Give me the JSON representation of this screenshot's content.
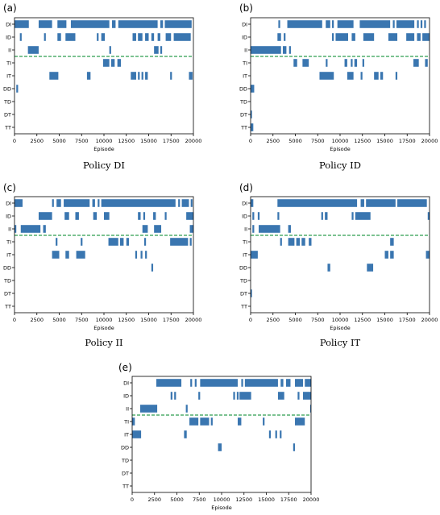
{
  "chart_data": [
    {
      "type": "timeline",
      "panel_label": "(a)",
      "caption": "Policy DI",
      "xlabel": "Episode",
      "xlim": [
        0,
        20000
      ],
      "xticks": [
        0,
        2500,
        5000,
        7500,
        10000,
        12500,
        15000,
        17500,
        20000
      ],
      "rows": [
        "DI",
        "ID",
        "II",
        "TI",
        "IT",
        "DD",
        "TD",
        "DT",
        "TT"
      ],
      "divider_after": "II",
      "segments": {
        "DI": [
          [
            0,
            1600
          ],
          [
            2700,
            4200
          ],
          [
            4800,
            5800
          ],
          [
            6300,
            10600
          ],
          [
            10900,
            11300
          ],
          [
            11600,
            16000
          ],
          [
            16300,
            16600
          ],
          [
            16800,
            19800
          ]
        ],
        "ID": [
          [
            600,
            800
          ],
          [
            3300,
            3500
          ],
          [
            4800,
            5200
          ],
          [
            5700,
            6800
          ],
          [
            9200,
            9400
          ],
          [
            9700,
            10100
          ],
          [
            13200,
            13600
          ],
          [
            13800,
            14300
          ],
          [
            14600,
            15000
          ],
          [
            15300,
            15600
          ],
          [
            16000,
            16300
          ],
          [
            16900,
            17500
          ],
          [
            17800,
            19700
          ]
        ],
        "II": [
          [
            1500,
            2700
          ],
          [
            10600,
            10800
          ],
          [
            15600,
            16100
          ],
          [
            16300,
            16500
          ]
        ],
        "TI": [
          [
            9900,
            10600
          ],
          [
            10800,
            11200
          ],
          [
            11500,
            11900
          ]
        ],
        "IT": [
          [
            3900,
            4900
          ],
          [
            8100,
            8500
          ],
          [
            13000,
            13600
          ],
          [
            13800,
            14000
          ],
          [
            14200,
            14400
          ],
          [
            14600,
            14900
          ],
          [
            17400,
            17600
          ],
          [
            19500,
            19900
          ]
        ],
        "DD": [
          [
            200,
            400
          ]
        ],
        "TD": [],
        "DT": [],
        "TT": []
      }
    },
    {
      "type": "timeline",
      "panel_label": "(b)",
      "caption": "Policy ID",
      "xlabel": "Episode",
      "xlim": [
        0,
        20000
      ],
      "xticks": [
        0,
        2500,
        5000,
        7500,
        10000,
        12500,
        15000,
        17500,
        20000
      ],
      "rows": [
        "DI",
        "ID",
        "II",
        "TI",
        "IT",
        "DD",
        "TD",
        "DT",
        "TT"
      ],
      "divider_after": "II",
      "segments": {
        "DI": [
          [
            3100,
            3300
          ],
          [
            4100,
            8000
          ],
          [
            8400,
            8900
          ],
          [
            9100,
            9300
          ],
          [
            9700,
            11500
          ],
          [
            12200,
            15600
          ],
          [
            15900,
            16100
          ],
          [
            16300,
            18300
          ],
          [
            18600,
            18800
          ],
          [
            19000,
            19200
          ],
          [
            19400,
            19600
          ]
        ],
        "ID": [
          [
            3000,
            3400
          ],
          [
            3700,
            3900
          ],
          [
            9100,
            9300
          ],
          [
            9500,
            10900
          ],
          [
            11300,
            11700
          ],
          [
            12600,
            13800
          ],
          [
            15400,
            16400
          ],
          [
            17400,
            18300
          ],
          [
            18600,
            19000
          ],
          [
            19200,
            20000
          ]
        ],
        "II": [
          [
            0,
            3400
          ],
          [
            3600,
            4000
          ],
          [
            4300,
            4500
          ]
        ],
        "TI": [
          [
            4800,
            5200
          ],
          [
            5800,
            6500
          ],
          [
            8400,
            8600
          ],
          [
            10500,
            10800
          ],
          [
            11200,
            11400
          ],
          [
            11600,
            11900
          ],
          [
            12500,
            12700
          ],
          [
            18200,
            18800
          ],
          [
            19500,
            19800
          ]
        ],
        "IT": [
          [
            7700,
            9300
          ],
          [
            10800,
            11500
          ],
          [
            12300,
            12500
          ],
          [
            13800,
            14300
          ],
          [
            14500,
            14800
          ],
          [
            16200,
            16400
          ]
        ],
        "DD": [
          [
            0,
            400
          ]
        ],
        "TD": [],
        "DT": [
          [
            0,
            150
          ]
        ],
        "TT": [
          [
            0,
            300
          ]
        ]
      }
    },
    {
      "type": "timeline",
      "panel_label": "(c)",
      "caption": "Policy II",
      "xlabel": "Episode",
      "xlim": [
        0,
        20000
      ],
      "xticks": [
        0,
        2500,
        5000,
        7500,
        10000,
        12500,
        15000,
        17500,
        20000
      ],
      "rows": [
        "DI",
        "ID",
        "II",
        "TI",
        "IT",
        "DD",
        "TD",
        "DT",
        "TT"
      ],
      "divider_after": "II",
      "segments": {
        "DI": [
          [
            0,
            900
          ],
          [
            4200,
            4400
          ],
          [
            4700,
            5200
          ],
          [
            5500,
            8400
          ],
          [
            8700,
            9000
          ],
          [
            9300,
            9500
          ],
          [
            9700,
            18000
          ],
          [
            18300,
            18500
          ],
          [
            18700,
            19500
          ],
          [
            19700,
            19900
          ]
        ],
        "ID": [
          [
            2700,
            4200
          ],
          [
            5600,
            6100
          ],
          [
            6800,
            7200
          ],
          [
            8800,
            9200
          ],
          [
            10000,
            10600
          ],
          [
            13800,
            14100
          ],
          [
            14400,
            14600
          ],
          [
            15500,
            15800
          ],
          [
            16800,
            17000
          ],
          [
            19200,
            20000
          ]
        ],
        "II": [
          [
            0,
            200
          ],
          [
            700,
            2900
          ],
          [
            3200,
            3500
          ],
          [
            14300,
            14900
          ],
          [
            15600,
            16400
          ],
          [
            19600,
            20000
          ]
        ],
        "TI": [
          [
            4600,
            4800
          ],
          [
            7400,
            7600
          ],
          [
            10500,
            11600
          ],
          [
            11800,
            12200
          ],
          [
            12500,
            12800
          ],
          [
            14500,
            14700
          ],
          [
            17400,
            19400
          ],
          [
            19600,
            19800
          ]
        ],
        "IT": [
          [
            4200,
            5000
          ],
          [
            5700,
            6100
          ],
          [
            6900,
            7900
          ],
          [
            13500,
            13700
          ],
          [
            14100,
            14300
          ],
          [
            14600,
            14800
          ]
        ],
        "DD": [
          [
            15300,
            15500
          ]
        ],
        "TD": [],
        "DT": [],
        "TT": []
      }
    },
    {
      "type": "timeline",
      "panel_label": "(d)",
      "caption": "Policy IT",
      "xlabel": "Episode",
      "xlim": [
        0,
        20000
      ],
      "xticks": [
        0,
        2500,
        5000,
        7500,
        10000,
        12500,
        15000,
        17500,
        20000
      ],
      "rows": [
        "DI",
        "ID",
        "II",
        "TI",
        "IT",
        "DD",
        "TD",
        "DT",
        "TT"
      ],
      "divider_after": "II",
      "segments": {
        "DI": [
          [
            0,
            300
          ],
          [
            3000,
            11900
          ],
          [
            12300,
            12700
          ],
          [
            12900,
            16200
          ],
          [
            16400,
            19700
          ]
        ],
        "ID": [
          [
            200,
            400
          ],
          [
            800,
            1000
          ],
          [
            3000,
            3200
          ],
          [
            7900,
            8100
          ],
          [
            8300,
            8600
          ],
          [
            11300,
            11500
          ],
          [
            11700,
            13400
          ],
          [
            19800,
            20000
          ]
        ],
        "II": [
          [
            200,
            400
          ],
          [
            900,
            3300
          ],
          [
            4200,
            4500
          ]
        ],
        "TI": [
          [
            3300,
            3500
          ],
          [
            4200,
            4900
          ],
          [
            5100,
            5500
          ],
          [
            5700,
            6100
          ],
          [
            6500,
            6800
          ],
          [
            15600,
            16000
          ]
        ],
        "IT": [
          [
            0,
            800
          ],
          [
            15000,
            15400
          ],
          [
            15600,
            16000
          ],
          [
            19600,
            20000
          ]
        ],
        "DD": [
          [
            8600,
            8900
          ],
          [
            13000,
            13700
          ]
        ],
        "TD": [],
        "DT": [
          [
            0,
            150
          ]
        ],
        "TT": []
      }
    },
    {
      "type": "timeline",
      "panel_label": "(e)",
      "caption": "",
      "xlabel": "Episode",
      "xlim": [
        0,
        20000
      ],
      "xticks": [
        0,
        2500,
        5000,
        7500,
        10000,
        12500,
        15000,
        17500,
        20000
      ],
      "rows": [
        "DI",
        "ID",
        "II",
        "TI",
        "IT",
        "DD",
        "TD",
        "DT",
        "TT"
      ],
      "divider_after": "II",
      "segments": {
        "DI": [
          [
            2700,
            5500
          ],
          [
            6500,
            6700
          ],
          [
            7000,
            7200
          ],
          [
            7600,
            11800
          ],
          [
            12200,
            12400
          ],
          [
            12600,
            16300
          ],
          [
            16600,
            16900
          ],
          [
            17200,
            17700
          ],
          [
            18200,
            19100
          ],
          [
            19300,
            20000
          ]
        ],
        "ID": [
          [
            4300,
            4500
          ],
          [
            4700,
            4900
          ],
          [
            7400,
            7600
          ],
          [
            11300,
            11500
          ],
          [
            11700,
            11900
          ],
          [
            12000,
            13300
          ],
          [
            16300,
            17000
          ],
          [
            18500,
            18700
          ],
          [
            19100,
            20000
          ]
        ],
        "II": [
          [
            900,
            2800
          ],
          [
            6000,
            6200
          ],
          [
            19900,
            20000
          ]
        ],
        "TI": [
          [
            0,
            300
          ],
          [
            6400,
            7400
          ],
          [
            7600,
            8600
          ],
          [
            8800,
            9000
          ],
          [
            11800,
            12200
          ],
          [
            14600,
            14800
          ],
          [
            18200,
            19300
          ]
        ],
        "IT": [
          [
            0,
            1000
          ],
          [
            5800,
            6100
          ],
          [
            15300,
            15500
          ],
          [
            16000,
            16200
          ],
          [
            16500,
            16700
          ]
        ],
        "DD": [
          [
            9600,
            10000
          ],
          [
            18000,
            18200
          ]
        ],
        "TD": [],
        "DT": [],
        "TT": []
      }
    }
  ],
  "style": {
    "bar_color": "#3a76b0",
    "divider_color": "#2e9e4f",
    "axis_color": "#000000",
    "text_color": "#000000"
  }
}
